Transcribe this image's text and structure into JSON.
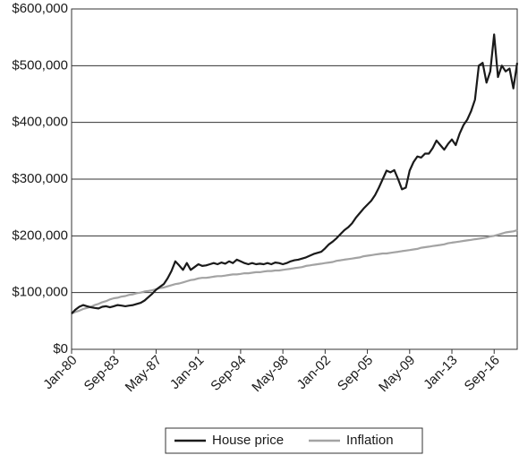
{
  "chart_data": {
    "type": "line",
    "categories": [
      "Jan-80",
      null,
      null,
      null,
      null,
      null,
      null,
      null,
      null,
      null,
      null,
      "Sep-83",
      null,
      null,
      null,
      null,
      null,
      null,
      null,
      null,
      null,
      null,
      "May-87",
      null,
      null,
      null,
      null,
      null,
      null,
      null,
      null,
      null,
      null,
      "Jan-91",
      null,
      null,
      null,
      null,
      null,
      null,
      null,
      null,
      null,
      null,
      "Sep-94",
      null,
      null,
      null,
      null,
      null,
      null,
      null,
      null,
      null,
      null,
      "May-98",
      null,
      null,
      null,
      null,
      null,
      null,
      null,
      null,
      null,
      null,
      "Jan-02",
      null,
      null,
      null,
      null,
      null,
      null,
      null,
      null,
      null,
      null,
      "Sep-05",
      null,
      null,
      null,
      null,
      null,
      null,
      null,
      null,
      null,
      null,
      "May-09",
      null,
      null,
      null,
      null,
      null,
      null,
      null,
      null,
      null,
      null,
      "Jan-13",
      null,
      null,
      null,
      null,
      null,
      null,
      null,
      null,
      null,
      null,
      "Sep-16",
      null,
      null,
      null,
      null,
      null,
      null
    ],
    "series": [
      {
        "name": "House price",
        "color": "#1a1a1a",
        "values": [
          63000,
          70000,
          75000,
          78000,
          76000,
          74000,
          73000,
          72000,
          75000,
          76000,
          74000,
          76000,
          78000,
          77000,
          76000,
          77000,
          78000,
          80000,
          82000,
          86000,
          92000,
          98000,
          105000,
          110000,
          115000,
          125000,
          138000,
          155000,
          148000,
          140000,
          152000,
          140000,
          145000,
          150000,
          147000,
          148000,
          150000,
          152000,
          150000,
          153000,
          151000,
          155000,
          152000,
          158000,
          155000,
          152000,
          150000,
          152000,
          150000,
          151000,
          150000,
          152000,
          150000,
          153000,
          152000,
          150000,
          152000,
          155000,
          157000,
          158000,
          160000,
          162000,
          165000,
          168000,
          170000,
          172000,
          178000,
          185000,
          190000,
          196000,
          203000,
          210000,
          215000,
          222000,
          232000,
          240000,
          248000,
          255000,
          262000,
          272000,
          285000,
          300000,
          315000,
          312000,
          316000,
          300000,
          282000,
          285000,
          315000,
          330000,
          340000,
          338000,
          345000,
          345000,
          355000,
          368000,
          360000,
          352000,
          362000,
          370000,
          360000,
          380000,
          395000,
          405000,
          420000,
          440000,
          500000,
          505000,
          470000,
          490000,
          555000,
          480000,
          500000,
          490000,
          495000,
          460000,
          505000
        ]
      },
      {
        "name": "Inflation",
        "color": "#a3a3a3",
        "values": [
          63000,
          66000,
          68000,
          71000,
          73000,
          75000,
          78000,
          80000,
          83000,
          85000,
          88000,
          90000,
          91000,
          93000,
          94000,
          96000,
          97000,
          99000,
          100000,
          102000,
          103000,
          104000,
          106000,
          108000,
          109000,
          111000,
          113000,
          115000,
          116000,
          118000,
          120000,
          122000,
          123000,
          125000,
          126000,
          126000,
          127000,
          128000,
          129000,
          129000,
          130000,
          131000,
          132000,
          132000,
          133000,
          134000,
          134000,
          135000,
          136000,
          136000,
          137000,
          138000,
          138000,
          139000,
          139000,
          140000,
          141000,
          142000,
          143000,
          144000,
          145000,
          147000,
          148000,
          149000,
          150000,
          151000,
          152000,
          153000,
          154000,
          156000,
          157000,
          158000,
          159000,
          160000,
          161000,
          162000,
          164000,
          165000,
          166000,
          167000,
          168000,
          169000,
          169000,
          170000,
          171000,
          172000,
          173000,
          174000,
          175000,
          176000,
          177000,
          179000,
          180000,
          181000,
          182000,
          183000,
          184000,
          185000,
          187000,
          188000,
          189000,
          190000,
          191000,
          192000,
          193000,
          194000,
          195000,
          196000,
          197000,
          199000,
          200000,
          202000,
          204000,
          206000,
          207000,
          208000,
          210000
        ]
      }
    ],
    "ylim": [
      0,
      600000
    ],
    "yticks": [
      {
        "value": 0,
        "label": "$0"
      },
      {
        "value": 100000,
        "label": "$100,000"
      },
      {
        "value": 200000,
        "label": "$200,000"
      },
      {
        "value": 300000,
        "label": "$300,000"
      },
      {
        "value": 400000,
        "label": "$400,000"
      },
      {
        "value": 500000,
        "label": "$500,000"
      },
      {
        "value": 600000,
        "label": "$600,000"
      }
    ],
    "grid": true,
    "legend": "bottom"
  }
}
